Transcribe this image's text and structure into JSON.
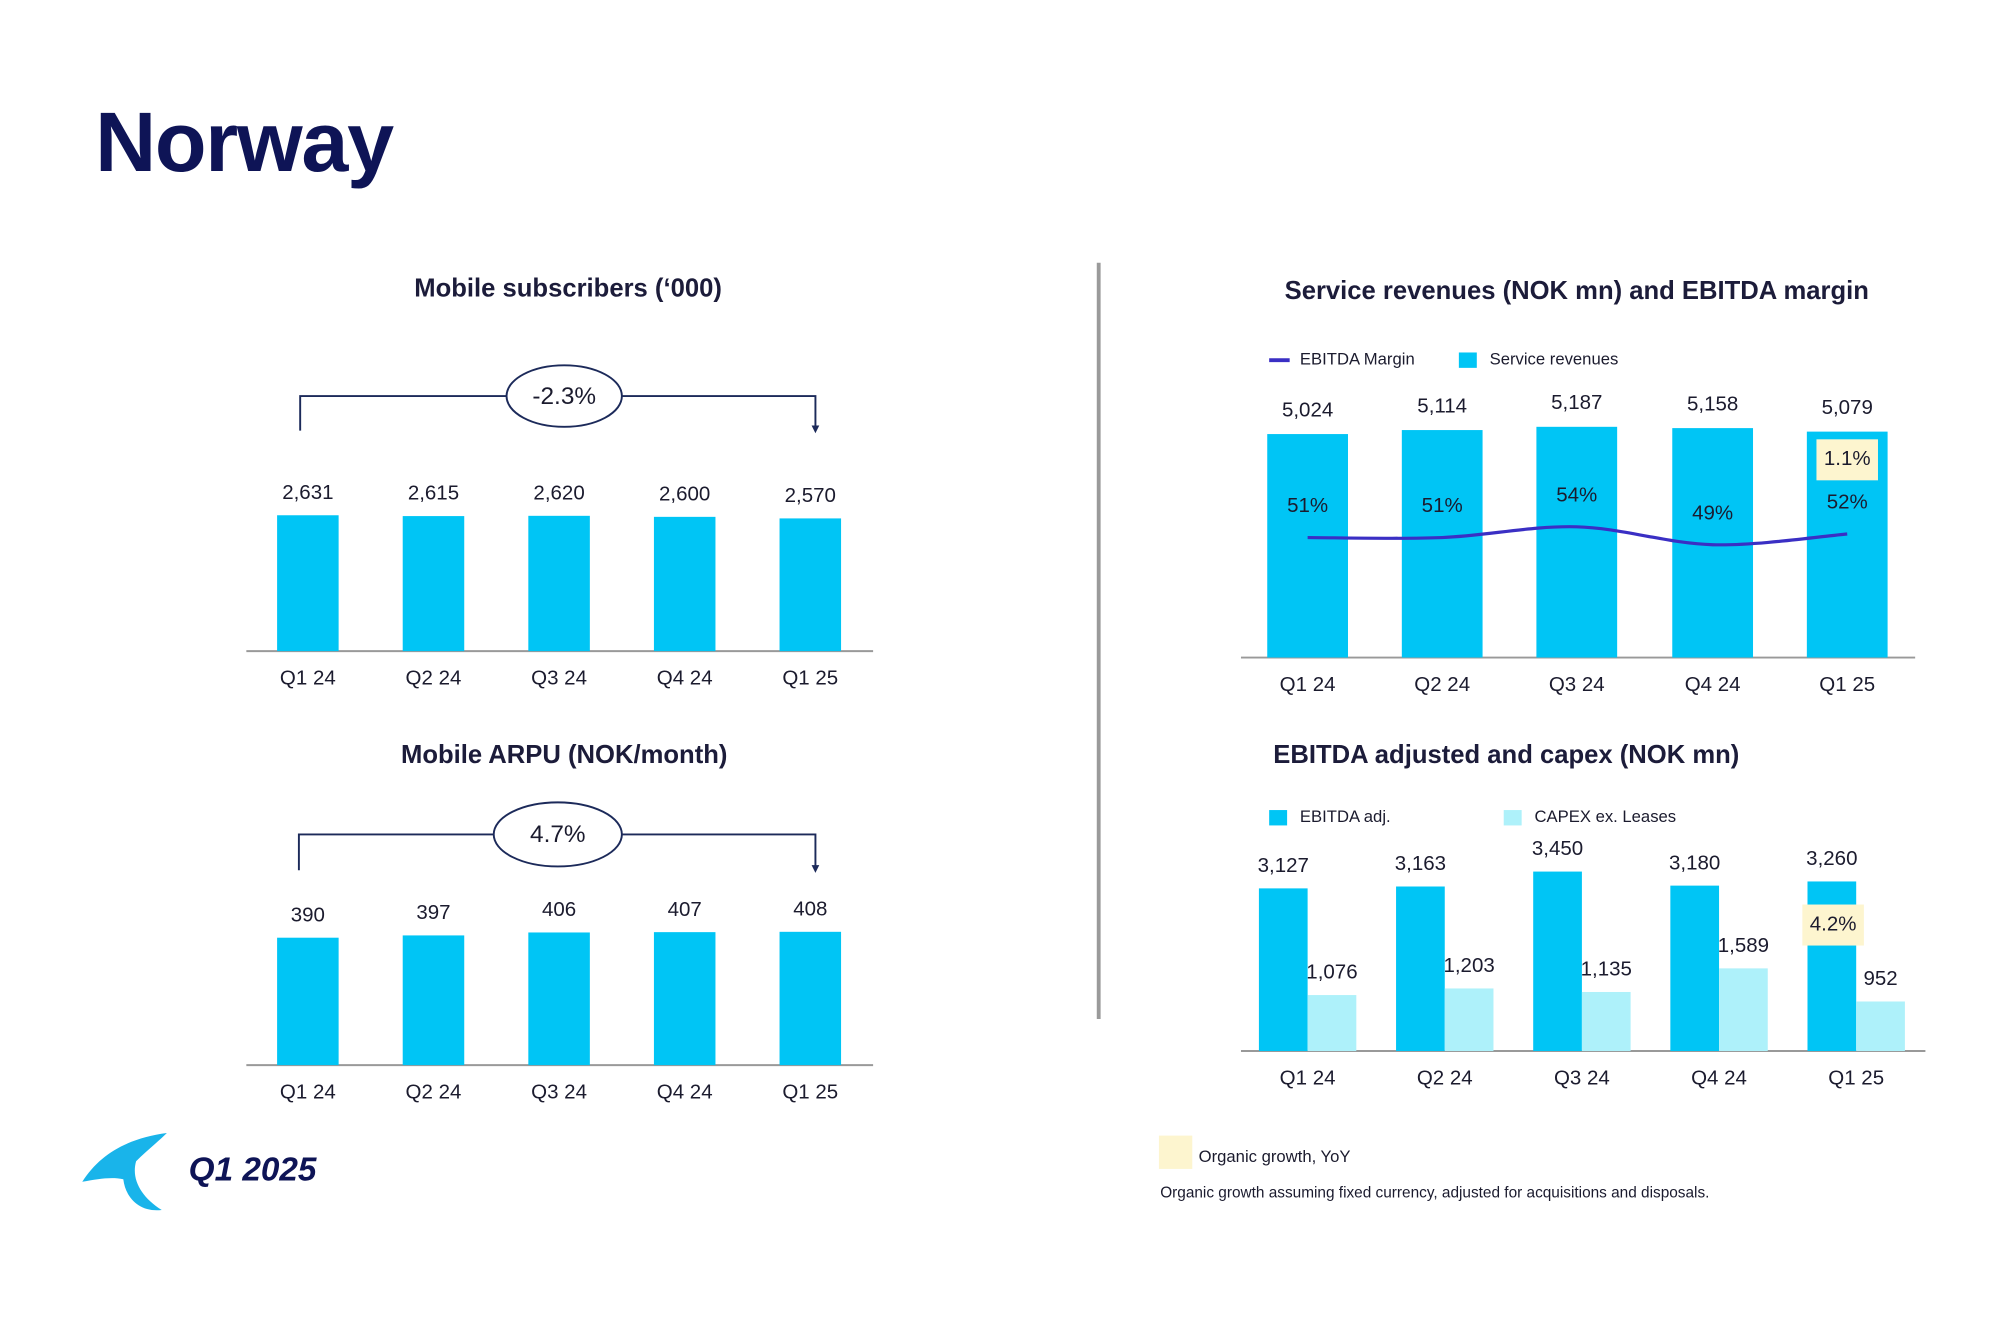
{
  "title": "Norway",
  "period": "Q1 2025",
  "legend_note": "Organic growth, YoY",
  "footnote": "Organic growth assuming fixed currency, adjusted for acquisitions and disposals.",
  "chart_data": [
    {
      "type": "bar",
      "title": "Mobile subscribers (‘000)",
      "categories": [
        "Q1 24",
        "Q2 24",
        "Q3 24",
        "Q4 24",
        "Q1 25"
      ],
      "values": [
        2631,
        2615,
        2620,
        2600,
        2570
      ],
      "value_labels": [
        "2,631",
        "2,615",
        "2,620",
        "2,600",
        "2,570"
      ],
      "color": "#00c5f5",
      "annotation": "-2.3%"
    },
    {
      "type": "bar",
      "title": "Mobile ARPU (NOK/month)",
      "categories": [
        "Q1 24",
        "Q2 24",
        "Q3 24",
        "Q4 24",
        "Q1 25"
      ],
      "values": [
        390,
        397,
        406,
        407,
        408
      ],
      "color": "#00c5f5",
      "annotation": "4.7%"
    },
    {
      "type": "combo",
      "title": "Service revenues (NOK mn) and EBITDA margin",
      "categories": [
        "Q1 24",
        "Q2 24",
        "Q3 24",
        "Q4 24",
        "Q1 25"
      ],
      "series": [
        {
          "name": "EBITDA Margin",
          "color": "#3a2fc4",
          "kind": "line",
          "axis": "y2",
          "values": [
            51,
            51,
            54,
            49,
            52
          ],
          "value_labels": [
            "51%",
            "51%",
            "54%",
            "49%",
            "52%"
          ]
        },
        {
          "name": "Service revenues",
          "color": "#00c5f5",
          "kind": "bar",
          "values": [
            5024,
            5114,
            5187,
            5158,
            5079
          ],
          "value_labels": [
            "5,024",
            "5,114",
            "5,187",
            "5,158",
            "5,079"
          ]
        }
      ],
      "highlight": {
        "category": "Q1 25",
        "label": "1.1%",
        "color": "#fdf5cf"
      }
    },
    {
      "type": "grouped",
      "title": "EBITDA adjusted and capex (NOK mn)",
      "categories": [
        "Q1 24",
        "Q2 24",
        "Q3 24",
        "Q4 24",
        "Q1 25"
      ],
      "series": [
        {
          "name": "EBITDA adj.",
          "color": "#00c5f5",
          "values": [
            3127,
            3163,
            3450,
            3180,
            3260
          ],
          "value_labels": [
            "3,127",
            "3,163",
            "3,450",
            "3,180",
            "3,260"
          ]
        },
        {
          "name": "CAPEX ex. Leases",
          "color": "#aef1fa",
          "values": [
            1076,
            1203,
            1135,
            1589,
            952
          ],
          "value_labels": [
            "1,076",
            "1,203",
            "1,135",
            "1,589",
            "952"
          ]
        }
      ],
      "highlight": {
        "category": "Q1 25",
        "label": "4.2%",
        "color": "#fdf5cf"
      }
    }
  ]
}
